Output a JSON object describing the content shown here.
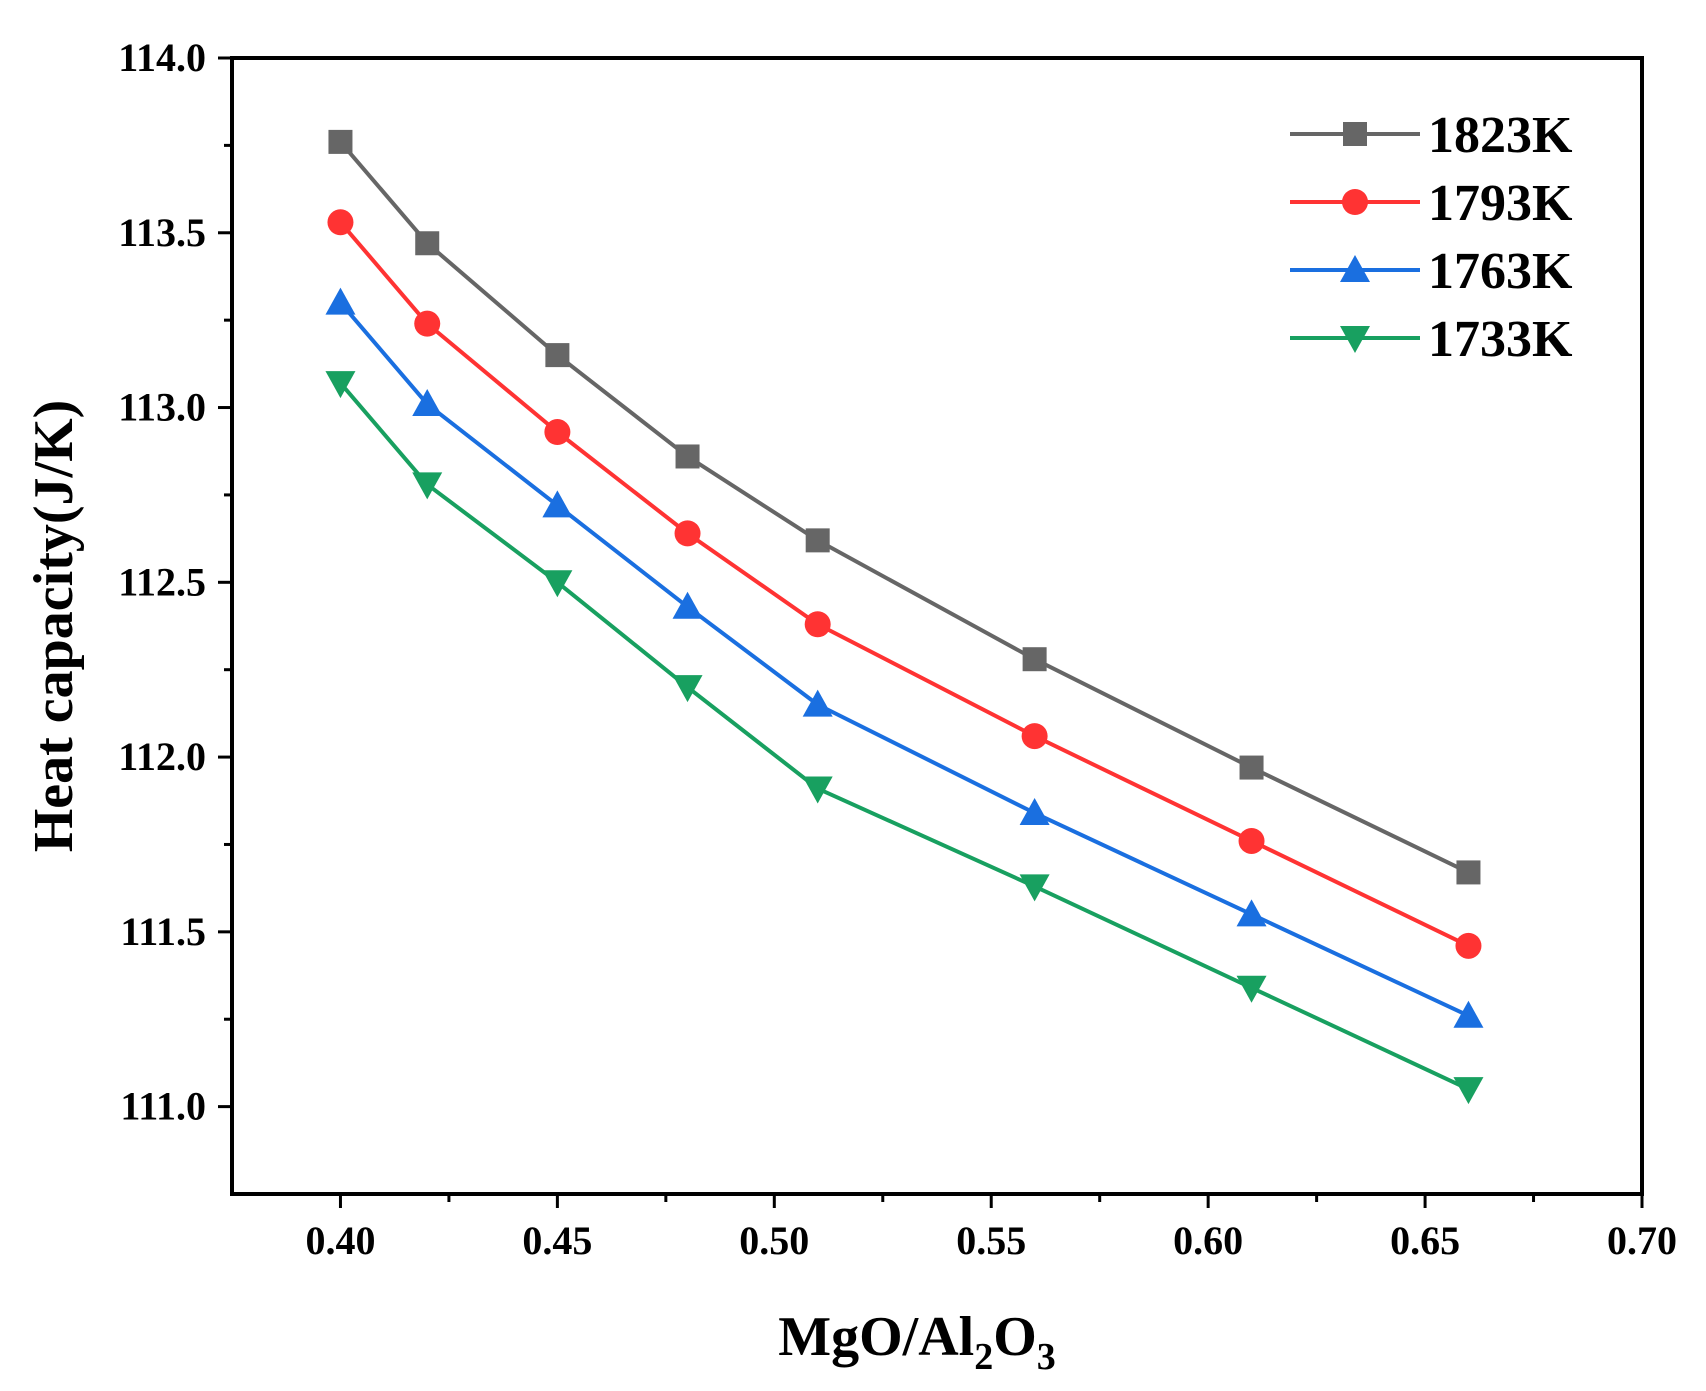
{
  "chart_data": {
    "type": "line",
    "title": "",
    "xlabel": "MgO/Al2O3",
    "xlabel_main": "MgO/Al",
    "xlabel_sub1": "2",
    "xlabel_mid": "O",
    "xlabel_sub2": "3",
    "ylabel": "Heat capacity(J/K)",
    "xlim": [
      0.375,
      0.7
    ],
    "ylim": [
      110.75,
      114.0
    ],
    "xticks": [
      0.4,
      0.45,
      0.5,
      0.55,
      0.6,
      0.65,
      0.7
    ],
    "xtick_labels": [
      "0.40",
      "0.45",
      "0.50",
      "0.55",
      "0.60",
      "0.65",
      "0.70"
    ],
    "yticks": [
      111.0,
      111.5,
      112.0,
      112.5,
      113.0,
      113.5,
      114.0
    ],
    "ytick_labels": [
      "111.0",
      "111.5",
      "112.0",
      "112.5",
      "113.0",
      "113.5",
      "114.0"
    ],
    "legend_position": "top-right",
    "x": [
      0.4,
      0.42,
      0.45,
      0.48,
      0.51,
      0.56,
      0.61,
      0.66
    ],
    "series": [
      {
        "name": "1823K",
        "color": "#666666",
        "marker": "square",
        "values": [
          113.76,
          113.47,
          113.15,
          112.86,
          112.62,
          112.28,
          111.97,
          111.67
        ]
      },
      {
        "name": "1793K",
        "color": "#ff3333",
        "marker": "circle",
        "values": [
          113.53,
          113.24,
          112.93,
          112.64,
          112.38,
          112.06,
          111.76,
          111.46
        ]
      },
      {
        "name": "1763K",
        "color": "#1a6fe0",
        "marker": "triangle-up",
        "values": [
          113.3,
          113.01,
          112.72,
          112.43,
          112.15,
          111.84,
          111.55,
          111.26
        ]
      },
      {
        "name": "1733K",
        "color": "#18a060",
        "marker": "triangle-down",
        "values": [
          113.07,
          112.78,
          112.5,
          112.2,
          111.91,
          111.63,
          111.34,
          111.05
        ]
      }
    ]
  }
}
